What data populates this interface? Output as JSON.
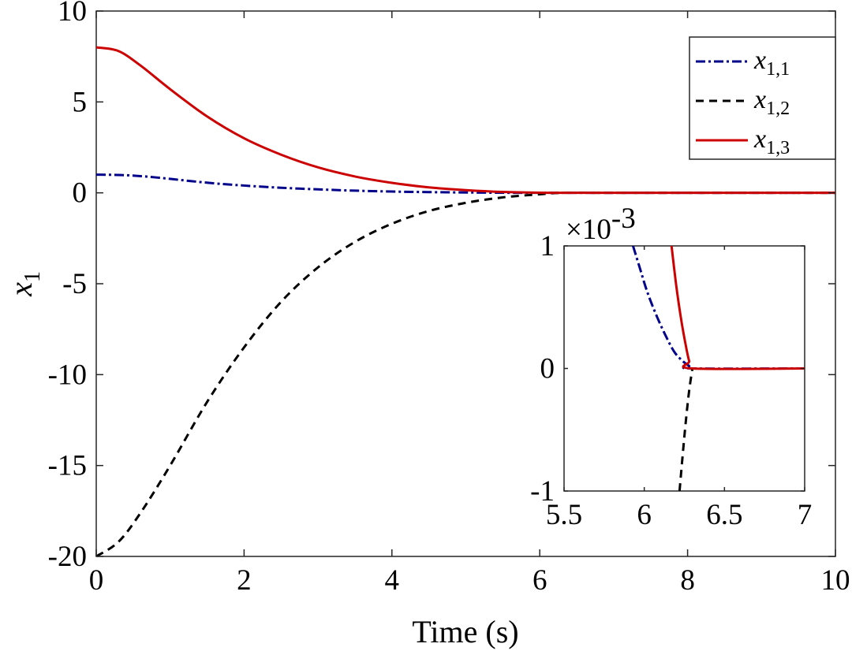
{
  "chart_data": [
    {
      "type": "line",
      "title": "",
      "xlabel": "Time (s)",
      "ylabel": "x",
      "ylabel_sub": "1",
      "xlim": [
        0,
        10
      ],
      "ylim": [
        -20,
        10
      ],
      "xticks": [
        0,
        2,
        4,
        6,
        8,
        10
      ],
      "xtick_labels": [
        "0",
        "2",
        "4",
        "6",
        "8",
        "10"
      ],
      "yticks": [
        -20,
        -15,
        -10,
        -5,
        0,
        5,
        10
      ],
      "ytick_labels": [
        "-20",
        "-15",
        "-10",
        "-5",
        "0",
        "5",
        "10"
      ],
      "grid": false,
      "legend_position": "top-right",
      "series": [
        {
          "name": "x",
          "sub": "1,1",
          "color": "#00008b",
          "style": "dash-dot",
          "x": [
            0,
            0.4,
            0.8,
            1.2,
            1.6,
            2.0,
            2.5,
            3.0,
            3.5,
            4.0,
            4.5,
            5.0,
            5.5,
            6.0,
            6.3,
            7.0,
            8.0,
            9.0,
            10.0
          ],
          "values": [
            1.0,
            0.97,
            0.85,
            0.68,
            0.52,
            0.4,
            0.28,
            0.19,
            0.12,
            0.07,
            0.04,
            0.02,
            0.005,
            0.001,
            0,
            0,
            0,
            0,
            0
          ]
        },
        {
          "name": "x",
          "sub": "1,2",
          "color": "#000000",
          "style": "dashed",
          "x": [
            0,
            0.3,
            0.6,
            1.0,
            1.5,
            2.0,
            2.5,
            3.0,
            3.5,
            4.0,
            4.5,
            5.0,
            5.5,
            6.0,
            6.3,
            7.0,
            8.0,
            9.0,
            10.0
          ],
          "values": [
            -20,
            -19.2,
            -17.6,
            -15.0,
            -11.5,
            -8.5,
            -6.0,
            -4.1,
            -2.7,
            -1.7,
            -1.0,
            -0.55,
            -0.25,
            -0.08,
            0,
            0,
            0,
            0,
            0
          ]
        },
        {
          "name": "x",
          "sub": "1,3",
          "color": "#cc0000",
          "style": "solid",
          "x": [
            0,
            0.3,
            0.6,
            1.0,
            1.5,
            2.0,
            2.5,
            3.0,
            3.5,
            4.0,
            4.5,
            5.0,
            5.5,
            6.0,
            6.3,
            7.0,
            8.0,
            9.0,
            10.0
          ],
          "values": [
            8.0,
            7.8,
            7.0,
            5.7,
            4.2,
            3.0,
            2.1,
            1.4,
            0.9,
            0.55,
            0.3,
            0.15,
            0.05,
            0.005,
            0,
            0,
            0,
            0,
            0
          ]
        }
      ]
    },
    {
      "type": "line",
      "role": "inset",
      "exponent_label": "×10",
      "exponent_power": "-3",
      "xlim": [
        5.5,
        7
      ],
      "ylim": [
        -1,
        1
      ],
      "xticks": [
        5.5,
        6,
        6.5,
        7
      ],
      "xtick_labels": [
        "5.5",
        "6",
        "6.5",
        "7"
      ],
      "yticks": [
        -1,
        0,
        1
      ],
      "ytick_labels": [
        "-1",
        "0",
        "1"
      ],
      "series": [
        {
          "name": "x",
          "sub": "1,1",
          "color": "#00008b",
          "style": "dash-dot",
          "x": [
            5.93,
            5.97,
            6.02,
            6.08,
            6.14,
            6.19,
            6.24,
            6.28,
            6.3,
            7.0
          ],
          "values": [
            1.0,
            0.83,
            0.62,
            0.42,
            0.25,
            0.13,
            0.06,
            0.02,
            0,
            0
          ]
        },
        {
          "name": "x",
          "sub": "1,2",
          "color": "#000000",
          "style": "dashed",
          "x": [
            6.22,
            6.24,
            6.26,
            6.28,
            6.3
          ],
          "values": [
            -1.0,
            -0.7,
            -0.42,
            -0.18,
            0
          ]
        },
        {
          "name": "x",
          "sub": "1,3",
          "color": "#cc0000",
          "style": "solid",
          "x": [
            6.17,
            6.2,
            6.23,
            6.26,
            6.28,
            6.3,
            7.0
          ],
          "values": [
            1.0,
            0.67,
            0.4,
            0.18,
            0.06,
            0,
            0
          ]
        }
      ]
    }
  ]
}
